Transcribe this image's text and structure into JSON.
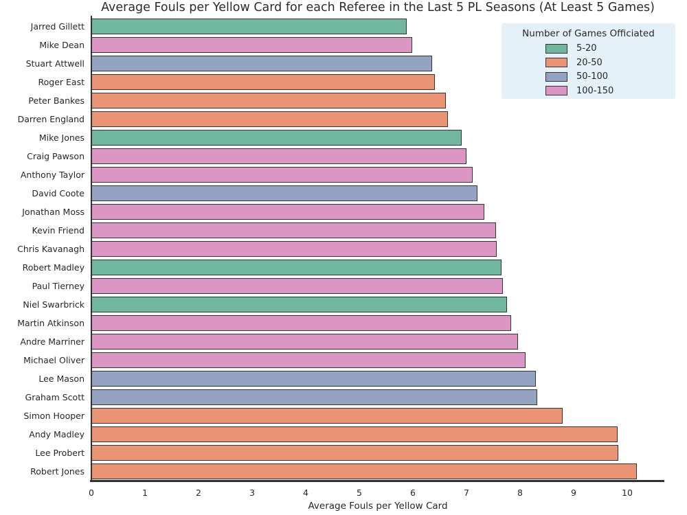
{
  "chart_data": {
    "type": "bar",
    "orientation": "horizontal",
    "title": "Average Fouls per Yellow Card for each Referee in the Last 5 PL Seasons (At Least 5 Games)",
    "xlabel": "Average Fouls per Yellow Card",
    "ylabel": "",
    "xlim": [
      0,
      10.68
    ],
    "xticks": [
      0,
      1,
      2,
      3,
      4,
      5,
      6,
      7,
      8,
      9,
      10
    ],
    "grid": false,
    "legend": {
      "title": "Number of Games Officiated",
      "position": "upper right",
      "background_color": "#e4f1f8",
      "entries": [
        {
          "label": "5-20",
          "color": "#71b7a0"
        },
        {
          "label": "20-50",
          "color": "#e99475"
        },
        {
          "label": "50-100",
          "color": "#95a3c3"
        },
        {
          "label": "100-150",
          "color": "#db96c4"
        }
      ]
    },
    "bar_edge_color": "#333333",
    "bars": [
      {
        "referee": "Jarred Gillett",
        "value": 5.89,
        "category": "5-20"
      },
      {
        "referee": "Mike Dean",
        "value": 5.99,
        "category": "100-150"
      },
      {
        "referee": "Stuart Attwell",
        "value": 6.36,
        "category": "50-100"
      },
      {
        "referee": "Roger East",
        "value": 6.41,
        "category": "20-50"
      },
      {
        "referee": "Peter Bankes",
        "value": 6.61,
        "category": "20-50"
      },
      {
        "referee": "Darren England",
        "value": 6.65,
        "category": "20-50"
      },
      {
        "referee": "Mike Jones",
        "value": 6.91,
        "category": "5-20"
      },
      {
        "referee": "Craig Pawson",
        "value": 7.0,
        "category": "100-150"
      },
      {
        "referee": "Anthony Taylor",
        "value": 7.12,
        "category": "100-150"
      },
      {
        "referee": "David Coote",
        "value": 7.2,
        "category": "50-100"
      },
      {
        "referee": "Jonathan Moss",
        "value": 7.33,
        "category": "100-150"
      },
      {
        "referee": "Kevin Friend",
        "value": 7.55,
        "category": "100-150"
      },
      {
        "referee": "Chris Kavanagh",
        "value": 7.56,
        "category": "100-150"
      },
      {
        "referee": "Robert Madley",
        "value": 7.66,
        "category": "5-20"
      },
      {
        "referee": "Paul Tierney",
        "value": 7.68,
        "category": "100-150"
      },
      {
        "referee": "Niel Swarbrick",
        "value": 7.76,
        "category": "5-20"
      },
      {
        "referee": "Martin Atkinson",
        "value": 7.83,
        "category": "100-150"
      },
      {
        "referee": "Andre Marriner",
        "value": 7.96,
        "category": "100-150"
      },
      {
        "referee": "Michael Oliver",
        "value": 8.1,
        "category": "100-150"
      },
      {
        "referee": "Lee Mason",
        "value": 8.3,
        "category": "50-100"
      },
      {
        "referee": "Graham Scott",
        "value": 8.32,
        "category": "50-100"
      },
      {
        "referee": "Simon Hooper",
        "value": 8.79,
        "category": "20-50"
      },
      {
        "referee": "Andy Madley",
        "value": 9.82,
        "category": "20-50"
      },
      {
        "referee": "Lee Probert",
        "value": 9.83,
        "category": "20-50"
      },
      {
        "referee": "Robert Jones",
        "value": 10.18,
        "category": "20-50"
      }
    ]
  }
}
